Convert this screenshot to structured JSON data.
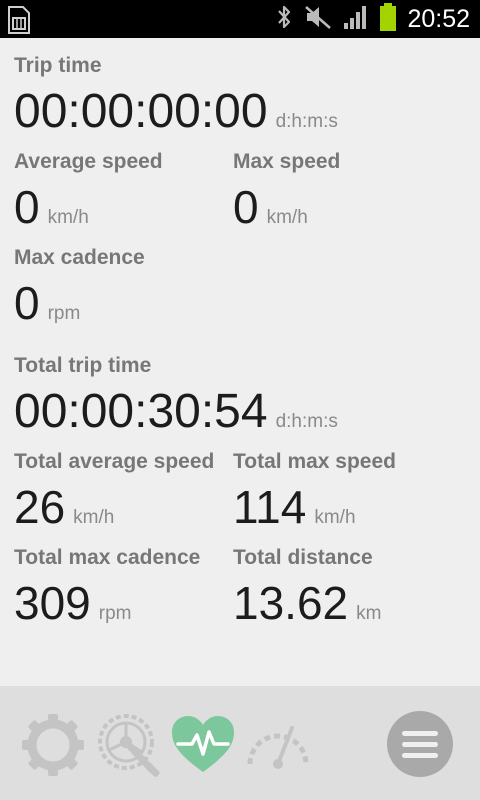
{
  "status": {
    "time": "20:52",
    "icons": [
      "sim-card-icon",
      "bluetooth-icon",
      "mute-icon",
      "signal-icon",
      "battery-icon"
    ],
    "battery_color": "#a4d400"
  },
  "stats": {
    "trip_time": {
      "label": "Trip time",
      "value": "00:00:00:00",
      "unit": "d:h:m:s"
    },
    "avg_speed": {
      "label": "Average speed",
      "value": "0",
      "unit": "km/h"
    },
    "max_speed": {
      "label": "Max speed",
      "value": "0",
      "unit": "km/h"
    },
    "max_cadence": {
      "label": "Max cadence",
      "value": "0",
      "unit": "rpm"
    },
    "total_trip_time": {
      "label": "Total trip time",
      "value": "00:00:30:54",
      "unit": "d:h:m:s"
    },
    "total_avg_speed": {
      "label": "Total average speed",
      "value": "26",
      "unit": "km/h"
    },
    "total_max_speed": {
      "label": "Total max speed",
      "value": "114",
      "unit": "km/h"
    },
    "total_max_cadence": {
      "label": "Total max cadence",
      "value": "309",
      "unit": "rpm"
    },
    "total_distance": {
      "label": "Total distance",
      "value": "13.62",
      "unit": "km"
    }
  },
  "toolbar": {
    "icons": [
      "settings-gear-icon",
      "chainring-icon",
      "heart-rate-icon",
      "speedometer-icon",
      "menu-icon"
    ],
    "active_color": "#7cc79c",
    "inactive_color": "#c4c4c4",
    "menu_bg": "#a9a9a9"
  }
}
